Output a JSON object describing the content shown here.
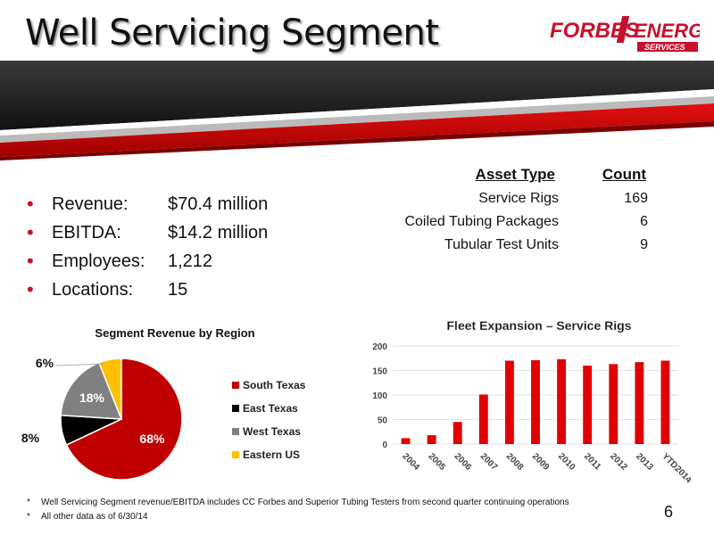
{
  "title": "Well Servicing Segment",
  "logo": {
    "text_main": "FORBES",
    "text_second": "ENERGY",
    "text_sub": "SERVICES"
  },
  "colors": {
    "accent": "#c8102e",
    "dark": "#1a1a1a",
    "gray": "#808080",
    "yellow": "#f5c400"
  },
  "summary": [
    {
      "label": "Revenue:",
      "value": "$70.4 million"
    },
    {
      "label": "EBITDA:",
      "value": "$14.2 million"
    },
    {
      "label": "Employees:",
      "value": "1,212"
    },
    {
      "label": "Locations:",
      "value": "15"
    }
  ],
  "asset_table": {
    "header_type": "Asset Type",
    "header_count": "Count",
    "rows": [
      {
        "type": "Service Rigs",
        "count": "169"
      },
      {
        "type": "Coiled Tubing Packages",
        "count": "6"
      },
      {
        "type": "Tubular Test Units",
        "count": "9"
      }
    ]
  },
  "chart_data": [
    {
      "type": "pie",
      "title": "Segment Revenue by Region",
      "categories": [
        "South Texas",
        "East Texas",
        "West Texas",
        "Eastern US"
      ],
      "values": [
        68,
        8,
        18,
        6
      ],
      "labels": [
        "68%",
        "8%",
        "18%",
        "6%"
      ],
      "colors": [
        "#c00000",
        "#000000",
        "#808080",
        "#ffc000"
      ],
      "legend": "right"
    },
    {
      "type": "bar",
      "title": "Fleet Expansion – Service Rigs",
      "categories": [
        "2004",
        "2005",
        "2006",
        "2007",
        "2008",
        "2009",
        "2010",
        "2011",
        "2012",
        "2013",
        "YTD2014"
      ],
      "values": [
        12,
        18,
        45,
        101,
        170,
        171,
        173,
        160,
        163,
        167,
        170
      ],
      "ylim": [
        0,
        200
      ],
      "yticks": [
        "0",
        "50",
        "100",
        "150",
        "200"
      ],
      "grid": true,
      "color": "#e00000"
    }
  ],
  "footnotes": [
    "Well Servicing Segment revenue/EBITDA includes CC Forbes and Superior Tubing Testers from second quarter continuing operations",
    "All other data as of 6/30/14"
  ],
  "footnote_marker": "*",
  "page_number": "6"
}
